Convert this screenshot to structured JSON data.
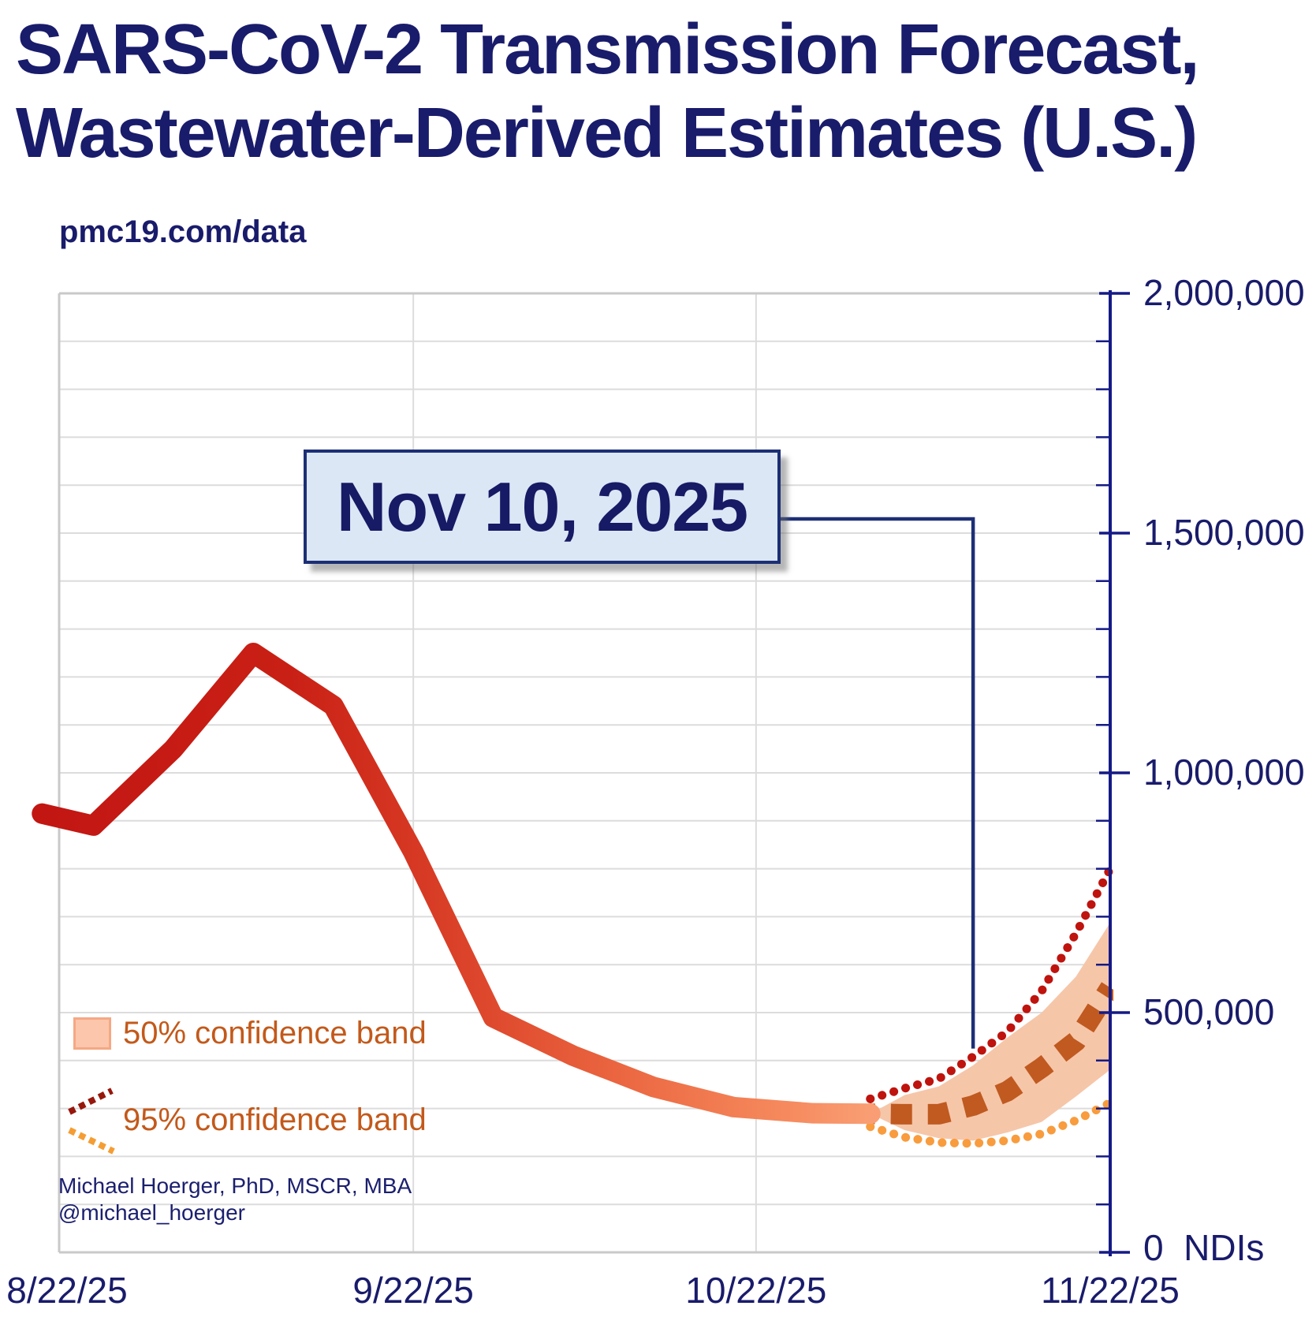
{
  "title": {
    "line1": "SARS-CoV-2 Transmission Forecast,",
    "line2": "Wastewater-Derived Estimates (U.S.)"
  },
  "subtitle": "pmc19.com/data",
  "callout": {
    "label": "Nov 10, 2025"
  },
  "legend": {
    "band50_label": "50% confidence band",
    "band95_label": "95% confidence band"
  },
  "credit": {
    "line1": "Michael Hoerger, PhD, MSCR, MBA",
    "line2": "@michael_hoerger"
  },
  "colors": {
    "navy_text": "#191b6b",
    "axis_navy": "#151a86",
    "gridline": "#dcdcdc",
    "frame": "#c9c9c9",
    "line_gradient_start": "#c21613",
    "line_gradient_mid": "#d63823",
    "line_gradient_end": "#f99e74",
    "band50_fill": "#f6c6a9",
    "forecast_median": "#c05a20",
    "band95_upper_dots": "#bf130e",
    "band95_lower_dots": "#f89c3e",
    "legend_red_dots": "#97170c",
    "legend_orange_dots": "#f59d33",
    "callout_fill": "#dbe7f5",
    "callout_border": "#1c2f75",
    "legend_text": "#c3591a"
  },
  "chart_data": {
    "type": "line",
    "title": "SARS-CoV-2 Transmission Forecast, Wastewater-Derived Estimates (U.S.)",
    "ylabel": "NDIs",
    "day_zero": "8/22/25",
    "x_axis": {
      "tick_labels": [
        "8/22/25",
        "9/22/25",
        "10/22/25",
        "11/22/25"
      ],
      "tick_days": [
        0,
        31,
        61,
        92
      ]
    },
    "y_axis": {
      "min": 0,
      "max": 2000000,
      "major_tick_step": 500000,
      "minor_tick_step": 100000,
      "tick_labels": [
        "2,000,000",
        "1,500,000",
        "1,000,000",
        "500,000",
        "0  NDIs"
      ],
      "grid": true
    },
    "annotation": {
      "date_label": "Nov 10, 2025",
      "target_day": 80,
      "pointer_bottom_value": 425000
    },
    "series": [
      {
        "name": "observed-transmission",
        "type": "line",
        "days": [
          -1.5,
          3,
          10,
          17,
          24,
          31,
          38,
          45,
          52,
          59,
          66,
          71
        ],
        "values": [
          915000,
          890000,
          1050000,
          1250000,
          1140000,
          835000,
          490000,
          410000,
          345000,
          303000,
          290000,
          289000
        ]
      },
      {
        "name": "forecast-median",
        "type": "dashed-line",
        "days": [
          71,
          74,
          77,
          80,
          83,
          86,
          89,
          92
        ],
        "values": [
          289000,
          288000,
          288000,
          306000,
          336000,
          385000,
          440000,
          552000
        ]
      },
      {
        "name": "50%-confidence-band",
        "type": "area",
        "days": [
          71,
          74,
          77,
          80,
          83,
          86,
          89,
          92
        ],
        "upper": [
          289000,
          328000,
          346000,
          390000,
          448000,
          500000,
          575000,
          688000
        ],
        "lower": [
          289000,
          255000,
          238000,
          233000,
          250000,
          272000,
          325000,
          381000
        ]
      },
      {
        "name": "95%-confidence-upper",
        "type": "dotted-line",
        "days": [
          71,
          74,
          77,
          80,
          83,
          86,
          89,
          92
        ],
        "values": [
          320000,
          342000,
          362000,
          408000,
          460000,
          545000,
          665000,
          800000
        ]
      },
      {
        "name": "95%-confidence-lower",
        "type": "dotted-line",
        "days": [
          71,
          74,
          77,
          80,
          83,
          86,
          89,
          92
        ],
        "values": [
          262000,
          240000,
          229000,
          227000,
          233000,
          247000,
          275000,
          312000
        ]
      }
    ]
  }
}
